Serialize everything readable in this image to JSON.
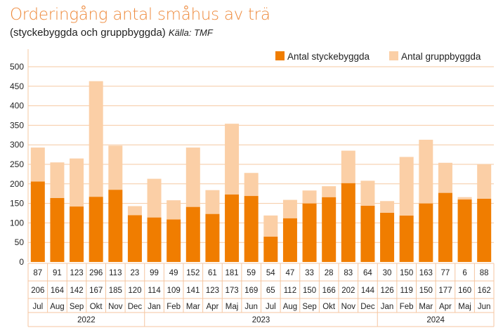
{
  "chart_data": {
    "type": "bar",
    "stacked": true,
    "title": "Orderingång antal småhus av trä",
    "subtitle": "(styckebyggda och gruppbyggda)",
    "source": "Källa: TMF",
    "ylim": [
      0,
      500
    ],
    "yticks": [
      0,
      50,
      100,
      150,
      200,
      250,
      300,
      350,
      400,
      450,
      500
    ],
    "grid": true,
    "legend_position": "top-right",
    "categories": [
      "Jul",
      "Aug",
      "Sep",
      "Okt",
      "Nov",
      "Dec",
      "Jan",
      "Feb",
      "Mar",
      "Apr",
      "Maj",
      "Jun",
      "Jul",
      "Aug",
      "Sep",
      "Okt",
      "Nov",
      "Dec",
      "Jan",
      "Feb",
      "Mar",
      "Apr",
      "Maj",
      "Jun"
    ],
    "years": [
      {
        "label": "2022",
        "months": 6
      },
      {
        "label": "2023",
        "months": 12
      },
      {
        "label": "2024",
        "months": 6
      }
    ],
    "series": [
      {
        "name": "Antal styckebyggda",
        "color": "#f07d00",
        "values": [
          206,
          164,
          142,
          167,
          185,
          120,
          114,
          109,
          141,
          123,
          173,
          169,
          65,
          112,
          150,
          166,
          202,
          144,
          126,
          119,
          150,
          177,
          160,
          162
        ]
      },
      {
        "name": "Antal gruppbyggda",
        "color": "#fbcfa6",
        "values": [
          87,
          91,
          123,
          296,
          113,
          23,
          99,
          49,
          152,
          61,
          181,
          59,
          54,
          47,
          33,
          28,
          83,
          64,
          30,
          150,
          163,
          77,
          6,
          88
        ]
      }
    ]
  }
}
